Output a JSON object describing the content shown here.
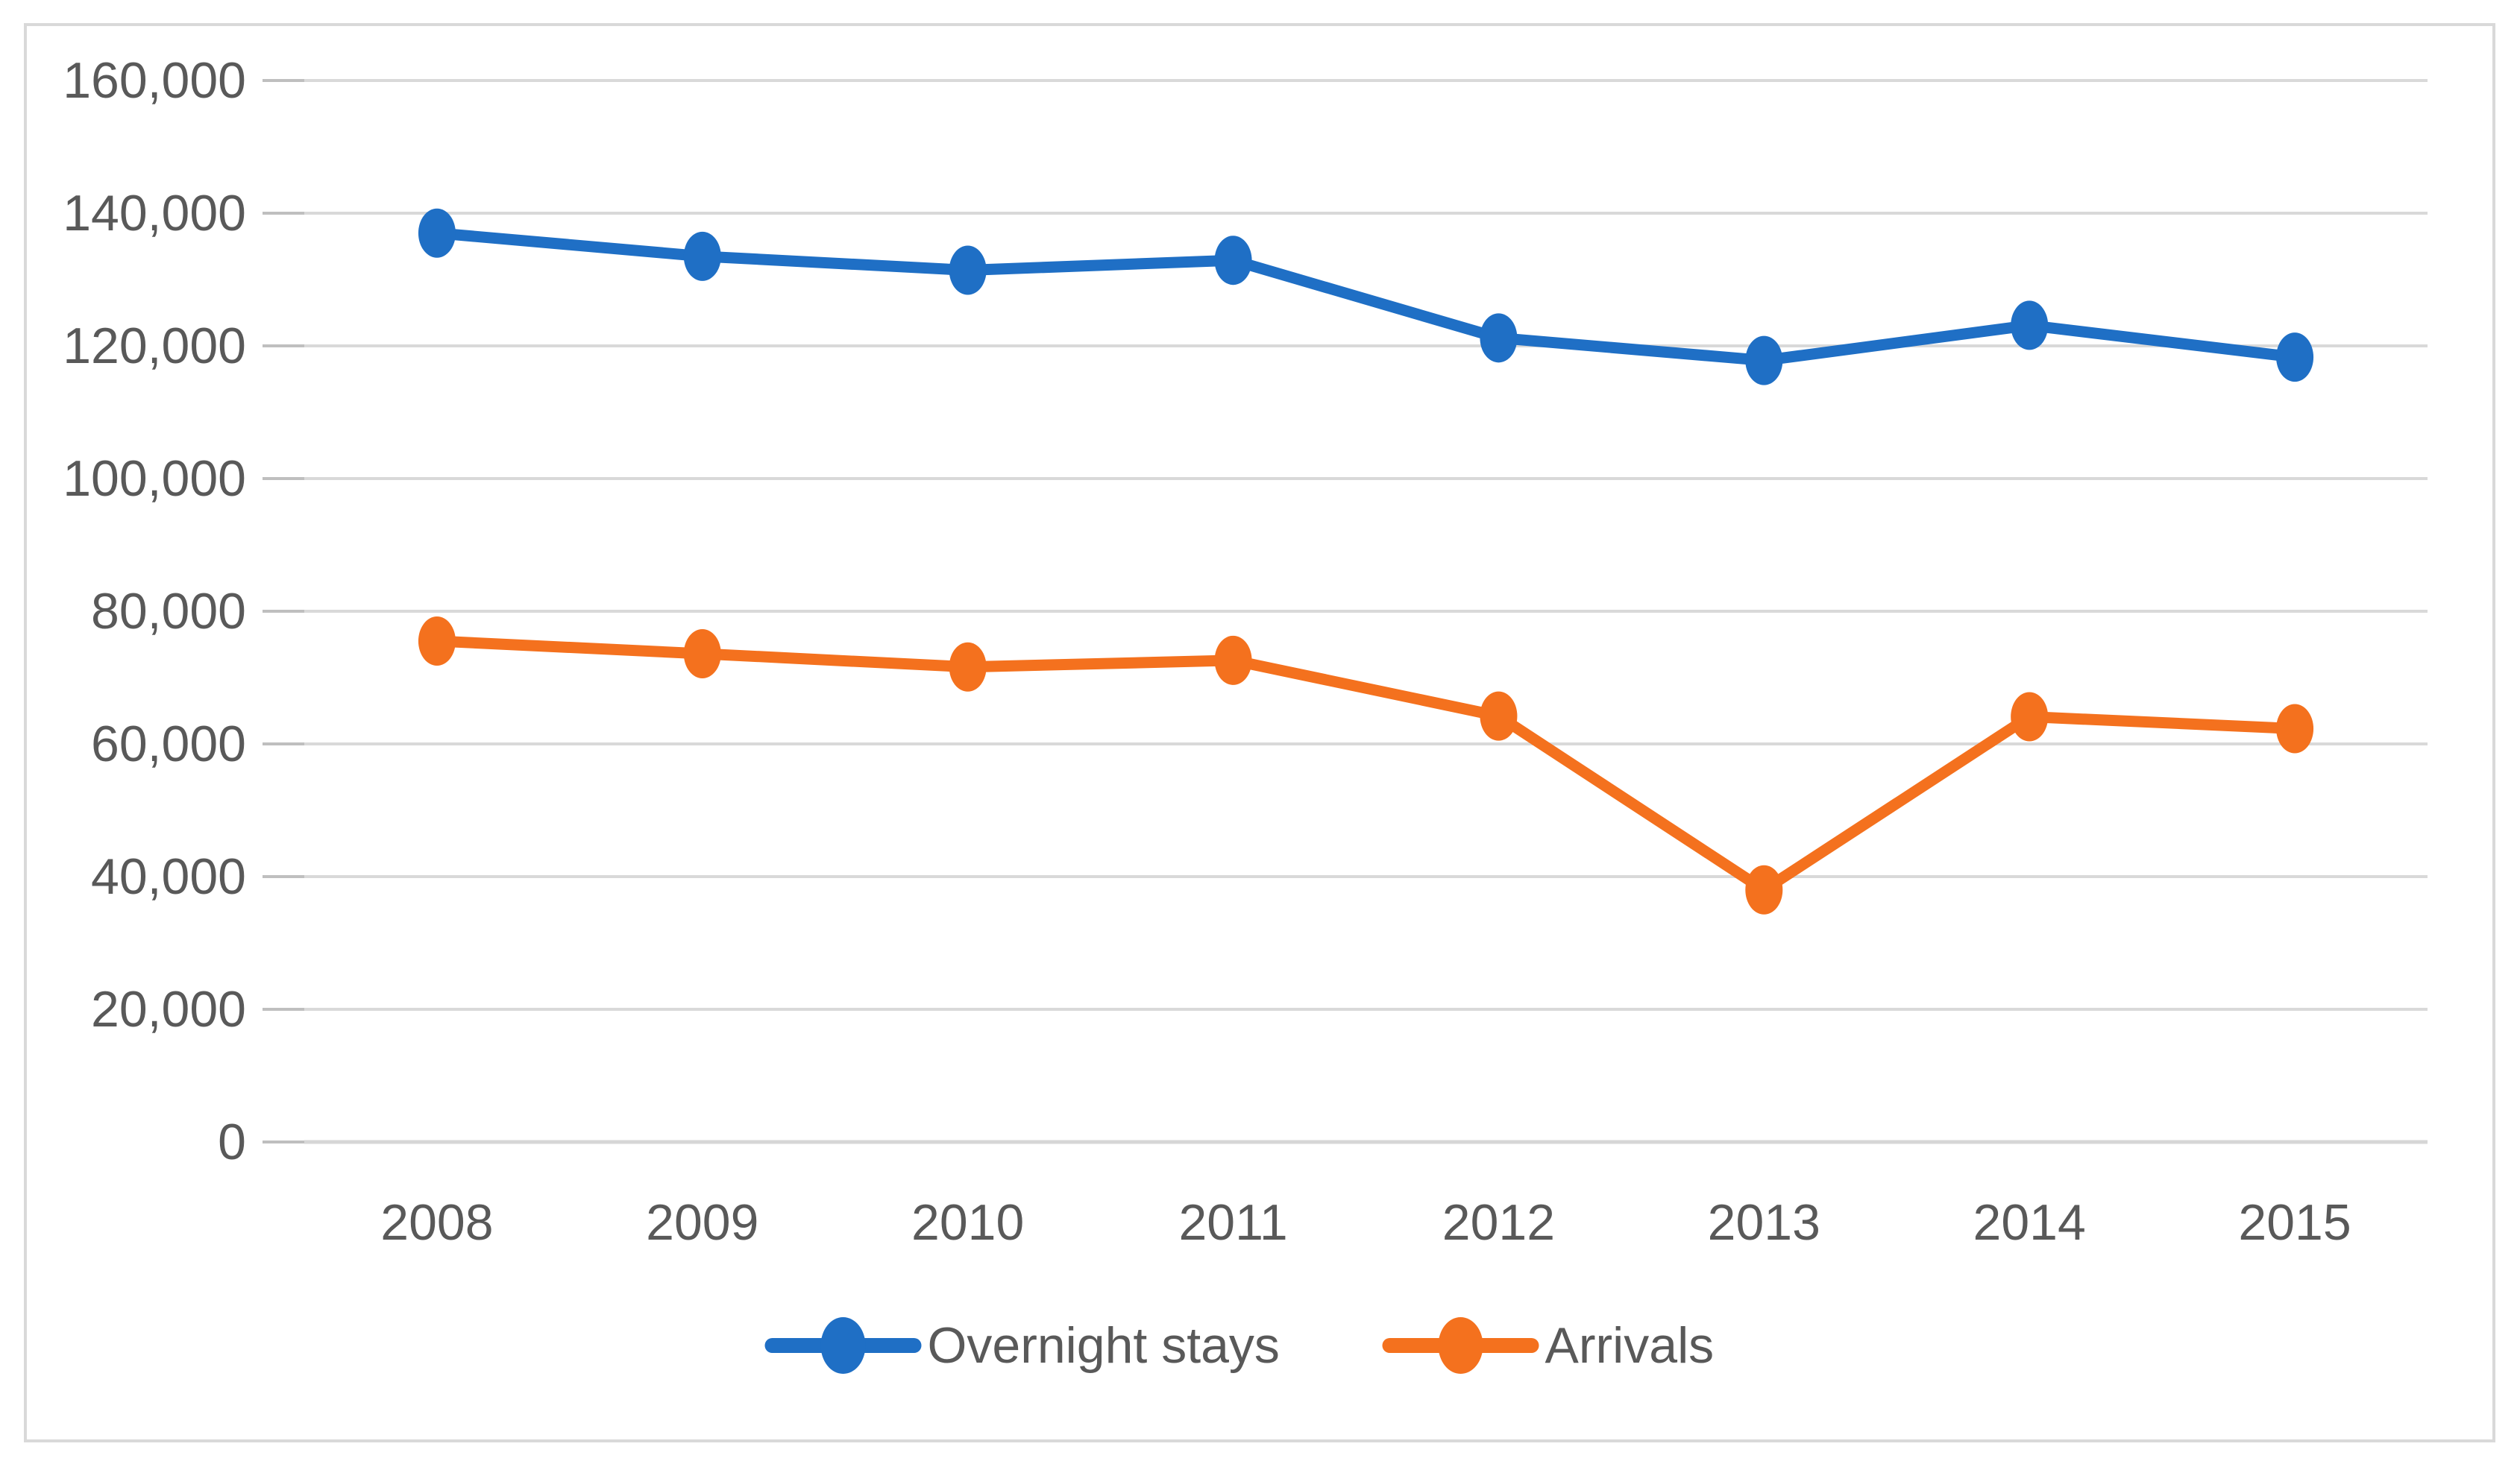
{
  "chart_data": {
    "type": "line",
    "title": "",
    "xlabel": "",
    "ylabel": "",
    "x_categories": [
      "2008",
      "2009",
      "2010",
      "2011",
      "2012",
      "2013",
      "2014",
      "2015"
    ],
    "series": [
      {
        "name": "Overnight stays",
        "color": "#1F6FC5",
        "values": [
          137000,
          133500,
          131400,
          132900,
          121200,
          117800,
          123100,
          118300
        ]
      },
      {
        "name": "Arrivals",
        "color": "#F4711E",
        "values": [
          75500,
          73600,
          71600,
          72600,
          64200,
          38000,
          64100,
          62300
        ]
      }
    ],
    "ylim": [
      0,
      160000
    ],
    "y_ticks": [
      {
        "value": 0,
        "label": "0"
      },
      {
        "value": 20000,
        "label": "20,000"
      },
      {
        "value": 40000,
        "label": "40,000"
      },
      {
        "value": 60000,
        "label": "60,000"
      },
      {
        "value": 80000,
        "label": "80,000"
      },
      {
        "value": 100000,
        "label": "100,000"
      },
      {
        "value": 120000,
        "label": "120,000"
      },
      {
        "value": 140000,
        "label": "140,000"
      },
      {
        "value": 160000,
        "label": "160,000"
      }
    ],
    "grid": "horizontal",
    "legend_position": "bottom-center",
    "marker": "circle"
  },
  "colors": {
    "background": "#FFFFFF",
    "chart_border": "#D9D9D9",
    "gridline": "#D9D9D9",
    "axis_line": "#D6D6D6",
    "tick_mark": "#BFBFBF",
    "label_text": "#595959"
  }
}
